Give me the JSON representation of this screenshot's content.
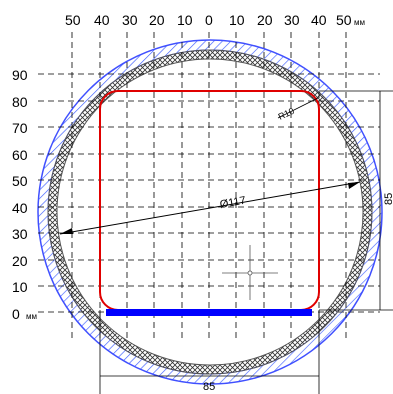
{
  "axes": {
    "top_ticks": [
      "50",
      "40",
      "30",
      "20",
      "10",
      "0",
      "10",
      "20",
      "30",
      "40",
      "50"
    ],
    "top_unit": "мм",
    "left_ticks": [
      "90",
      "80",
      "70",
      "60",
      "50",
      "40",
      "30",
      "20",
      "10",
      "0"
    ],
    "left_unit": "мм"
  },
  "dimensions": {
    "diameter": "Ø117",
    "radius": "R10",
    "width": "85",
    "height": "85"
  },
  "colors": {
    "rect_outline": "#e00000",
    "base_bar": "#0000ff",
    "pipe_hatch": "#4060ff",
    "cross_hatch": "#333333",
    "grid": "#000000"
  }
}
